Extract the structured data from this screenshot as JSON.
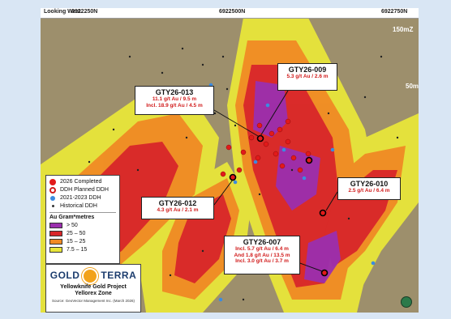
{
  "header": {
    "view_label": "Looking West",
    "northings": [
      "6922250N",
      "6922500N",
      "6922750N"
    ]
  },
  "elevations": [
    "150mZ",
    "50mZ"
  ],
  "callouts": [
    {
      "title": "GTY26-009",
      "lines": [
        "5.3 g/t Au / 2.6 m"
      ]
    },
    {
      "title": "GTY26-013",
      "lines": [
        "11.1 g/t Au / 9.5 m",
        "Incl. 18.9 g/t Au / 4.5 m"
      ]
    },
    {
      "title": "GTY26-012",
      "lines": [
        "4.3 g/t Au / 2.1 m"
      ]
    },
    {
      "title": "GTY26-010",
      "lines": [
        "2.5 g/t Au / 6.4 m"
      ]
    },
    {
      "title": "GTY26-007",
      "lines": [
        "Incl. 5.7 g/t Au / 6.4 m",
        "And 1.8 g/t Au / 13.5 m",
        "Incl. 3.0 g/t Au / 3.7 m"
      ]
    }
  ],
  "legend": {
    "drill_items": [
      {
        "label": "2026 Completed",
        "symbol": "filled-red-circle",
        "color": "#e21a1a"
      },
      {
        "label": "DDH Planned DDH",
        "symbol": "red-ring",
        "color": "#d11a1a"
      },
      {
        "label": "2021-2023 DDH",
        "symbol": "blue-dot",
        "color": "#3b8be0"
      },
      {
        "label": "Historical DDH",
        "symbol": "small-black-dot",
        "color": "#333333"
      }
    ],
    "grade_header": "Au Gram*metres",
    "grade_items": [
      {
        "label": "> 50",
        "color": "#9b2fae"
      },
      {
        "label": "25 – 50",
        "color": "#d8262a"
      },
      {
        "label": "15 – 25",
        "color": "#f08a24"
      },
      {
        "label": "7.5 – 15",
        "color": "#e8e63a"
      }
    ]
  },
  "logo": {
    "brand_left": "GOLD",
    "brand_right": "TERRA",
    "project": "Yellowknife Gold Project",
    "zone": "Yellorex Zone",
    "source": "Source: GeoVector Management Inc. (March 2026)"
  },
  "colors": {
    "background": "#9d8f6c",
    "contour_yellow": "#e8e63a",
    "contour_orange": "#f08a24",
    "contour_red": "#d8262a",
    "contour_purple": "#9b2fae"
  }
}
